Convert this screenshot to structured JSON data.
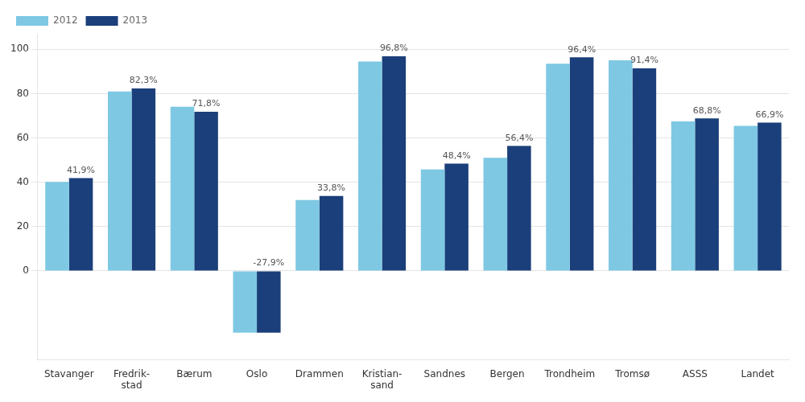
{
  "chart_data": {
    "type": "bar",
    "categories": [
      "Stavanger",
      "Fredrik-\nstad",
      "Bærum",
      "Oslo",
      "Drammen",
      "Kristian-\nsand",
      "Sandnes",
      "Bergen",
      "Trondheim",
      "Tromsø",
      "ASSS",
      "Landet"
    ],
    "series": [
      {
        "name": "2012",
        "color": "#7EC8E3",
        "values": [
          40.2,
          81.0,
          74.1,
          -27.9,
          32.0,
          94.5,
          45.8,
          51.0,
          93.5,
          95.0,
          67.5,
          65.5
        ]
      },
      {
        "name": "2013",
        "color": "#1B3F7A",
        "values": [
          41.9,
          82.3,
          71.8,
          -27.9,
          33.8,
          96.8,
          48.4,
          56.4,
          96.4,
          91.4,
          68.8,
          66.9
        ],
        "value_labels": [
          "41,9%",
          "82,3%",
          "71,8%",
          "-27,9%",
          "33,8%",
          "96,8%",
          "48,4%",
          "56,4%",
          "96,4%",
          "91,4%",
          "68,8%",
          "66,9%"
        ],
        "data_labels": true
      }
    ],
    "ylim": [
      -40,
      107
    ],
    "yticks": [
      0,
      20,
      40,
      60,
      80,
      100
    ],
    "grid": true,
    "legend": "top-left"
  }
}
